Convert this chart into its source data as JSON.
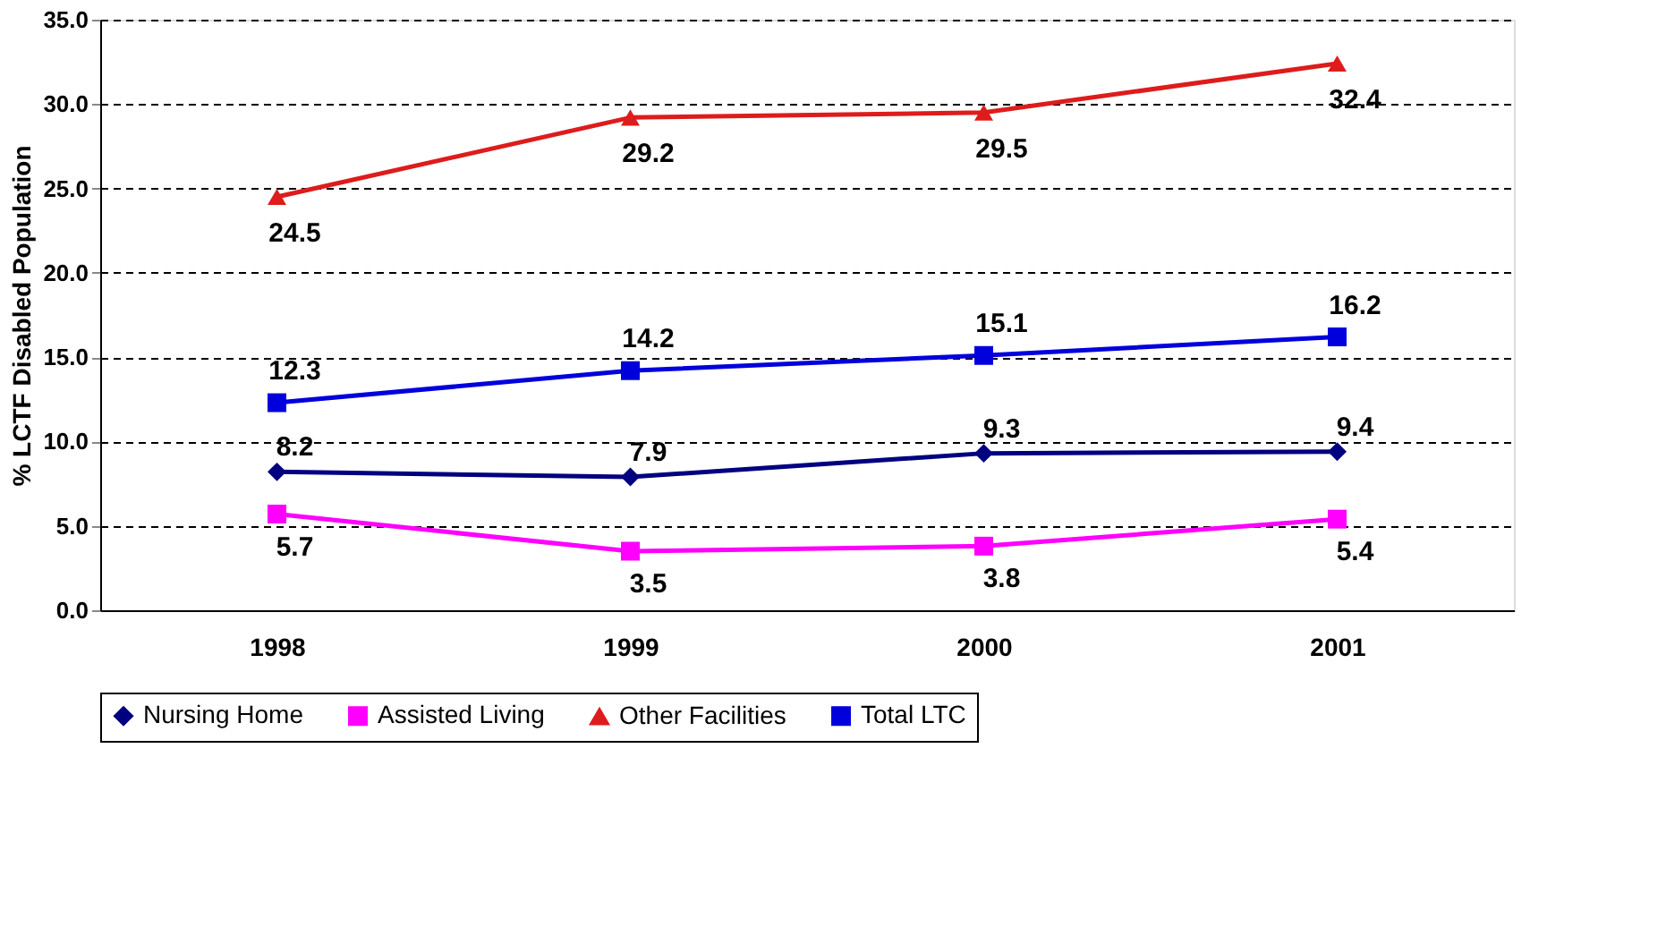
{
  "chart_data": {
    "type": "line",
    "ylabel": "% LCTF Disabled Population",
    "categories": [
      "1998",
      "1999",
      "2000",
      "2001"
    ],
    "series": [
      {
        "name": "Nursing Home",
        "color": "#000080",
        "marker": "diamond",
        "values": [
          8.2,
          7.9,
          9.3,
          9.4
        ]
      },
      {
        "name": "Assisted Living",
        "color": "#ff00ff",
        "marker": "square",
        "values": [
          5.7,
          3.5,
          3.8,
          5.4
        ]
      },
      {
        "name": "Other Facilities",
        "color": "#dd1c1c",
        "marker": "triangle",
        "values": [
          24.5,
          29.2,
          29.5,
          32.4
        ]
      },
      {
        "name": "Total LTC",
        "color": "#0000dd",
        "marker": "square",
        "values": [
          12.3,
          14.2,
          15.1,
          16.2
        ]
      }
    ],
    "ylim": [
      0,
      35
    ],
    "yticks": [
      {
        "value": 0,
        "label": "0.0"
      },
      {
        "value": 5,
        "label": "5.0"
      },
      {
        "value": 10,
        "label": "10.0"
      },
      {
        "value": 15,
        "label": "15.0"
      },
      {
        "value": 20,
        "label": "20.0"
      },
      {
        "value": 25,
        "label": "25.0"
      },
      {
        "value": 30,
        "label": "30.0"
      },
      {
        "value": 35,
        "label": "35.0"
      }
    ],
    "grid": "y",
    "line_style": "solid",
    "legend": "bottom",
    "data_labels": true
  }
}
